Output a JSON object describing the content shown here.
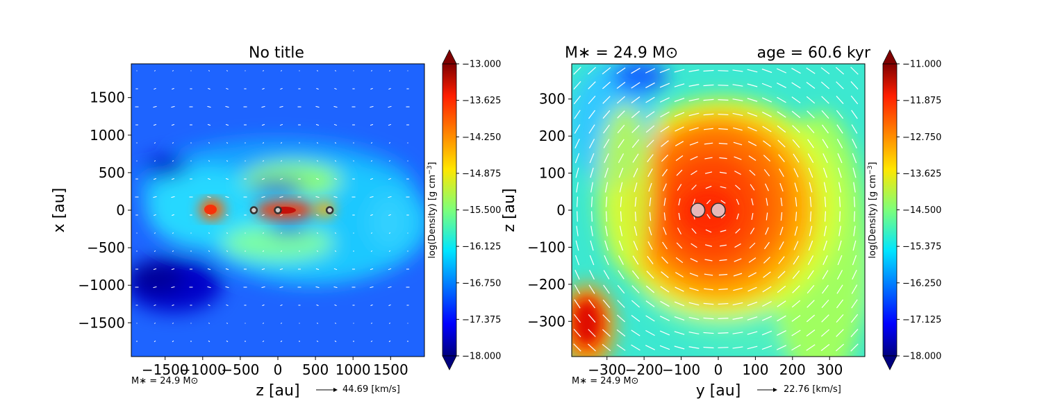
{
  "chart_data": [
    {
      "type": "heatmap",
      "title": "No title",
      "xlabel": "z [au]",
      "ylabel": "x [au]",
      "xlim": [
        -1950,
        1950
      ],
      "ylim": [
        -1950,
        1950
      ],
      "xticks": [
        -1500,
        -1000,
        -500,
        0,
        500,
        1000,
        1500
      ],
      "yticks": [
        -1500,
        -1000,
        -500,
        0,
        500,
        1000,
        1500
      ],
      "colorbar": {
        "label": "log(Density) [g cm^-3]",
        "min": -18.0,
        "max": -13.0,
        "ticks": [
          "−13.000",
          "−13.625",
          "−14.250",
          "−14.875",
          "−15.500",
          "−16.125",
          "−16.750",
          "−17.375",
          "−18.000"
        ]
      },
      "stars": [
        {
          "x": -320,
          "y": 0
        },
        {
          "x": 0,
          "y": 0
        },
        {
          "x": 690,
          "y": 0
        }
      ],
      "annotation_mass": "M∗ = 24.9 M⊙",
      "velocity_key": "44.69 [km/s]"
    },
    {
      "type": "heatmap",
      "title_left": "M∗ = 24.9 M⊙",
      "title_right": "age = 60.6 kyr",
      "xlabel": "y [au]",
      "ylabel": "z [au]",
      "xlim": [
        -395,
        395
      ],
      "ylim": [
        -395,
        395
      ],
      "xticks": [
        -300,
        -200,
        -100,
        0,
        100,
        200,
        300
      ],
      "yticks": [
        -300,
        -200,
        -100,
        0,
        100,
        200,
        300
      ],
      "colorbar": {
        "label": "log(Density) [g cm^-3]",
        "min": -18.0,
        "max": -11.0,
        "ticks": [
          "−11.000",
          "−11.875",
          "−12.750",
          "−13.625",
          "−14.500",
          "−15.375",
          "−16.250",
          "−17.125",
          "−18.000"
        ]
      },
      "stars": [
        {
          "x": -55,
          "y": 0
        },
        {
          "x": 0,
          "y": 0
        }
      ],
      "annotation_mass": "M∗ = 24.9 M⊙",
      "velocity_key": "22.76 [km/s]"
    }
  ]
}
